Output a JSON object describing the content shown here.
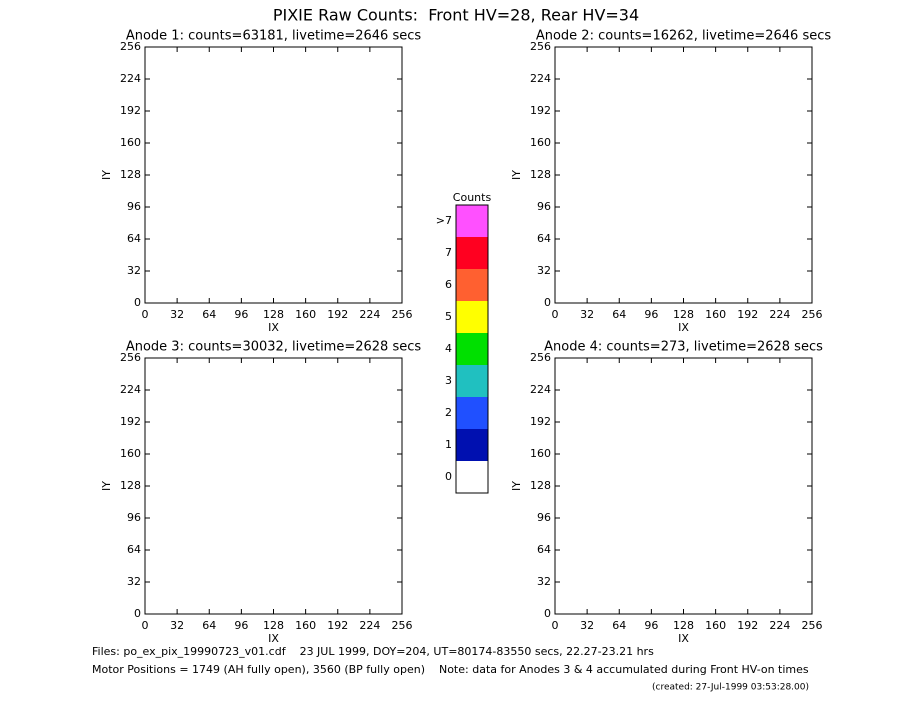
{
  "title": "PIXIE Raw Counts:  Front HV=28, Rear HV=34",
  "chart_data": [
    {
      "type": "heatmap",
      "title": "Anode 1: counts=63181, livetime=2646 secs",
      "xlabel": "IX",
      "ylabel": "IY",
      "xlim": [
        0,
        256
      ],
      "ylim": [
        0,
        256
      ],
      "xticks": [
        0,
        32,
        64,
        96,
        128,
        160,
        192,
        224,
        256
      ],
      "yticks": [
        0,
        32,
        64,
        96,
        128,
        160,
        192,
        224,
        256
      ]
    },
    {
      "type": "heatmap",
      "title": "Anode 2: counts=16262, livetime=2646 secs",
      "xlabel": "IX",
      "ylabel": "IY",
      "xlim": [
        0,
        256
      ],
      "ylim": [
        0,
        256
      ],
      "xticks": [
        0,
        32,
        64,
        96,
        128,
        160,
        192,
        224,
        256
      ],
      "yticks": [
        0,
        32,
        64,
        96,
        128,
        160,
        192,
        224,
        256
      ]
    },
    {
      "type": "heatmap",
      "title": "Anode 3: counts=30032, livetime=2628 secs",
      "xlabel": "IX",
      "ylabel": "IY",
      "xlim": [
        0,
        256
      ],
      "ylim": [
        0,
        256
      ],
      "xticks": [
        0,
        32,
        64,
        96,
        128,
        160,
        192,
        224,
        256
      ],
      "yticks": [
        0,
        32,
        64,
        96,
        128,
        160,
        192,
        224,
        256
      ]
    },
    {
      "type": "heatmap",
      "title": "Anode 4: counts=273, livetime=2628 secs",
      "xlabel": "IX",
      "ylabel": "IY",
      "xlim": [
        0,
        256
      ],
      "ylim": [
        0,
        256
      ],
      "xticks": [
        0,
        32,
        64,
        96,
        128,
        160,
        192,
        224,
        256
      ],
      "yticks": [
        0,
        32,
        64,
        96,
        128,
        160,
        192,
        224,
        256
      ]
    }
  ],
  "colorbar": {
    "title": "Counts",
    "labels": [
      "0",
      "1",
      "2",
      "3",
      "4",
      "5",
      "6",
      "7",
      ">7"
    ],
    "colors": [
      "#ffffff",
      "#0010b0",
      "#2050ff",
      "#20c0c0",
      "#00e000",
      "#ffff00",
      "#ff6030",
      "#ff0020",
      "#ff50ff"
    ]
  },
  "footer": [
    "Files: po_ex_pix_19990723_v01.cdf    23 JUL 1999, DOY=204, UT=80174-83550 secs, 22.27-23.21 hrs",
    "Motor Positions = 1749 (AH fully open), 3560 (BP fully open)    Note: data for Anodes 3 & 4 accumulated during Front HV-on times",
    "(created: 27-Jul-1999 03:53:28.00)"
  ]
}
